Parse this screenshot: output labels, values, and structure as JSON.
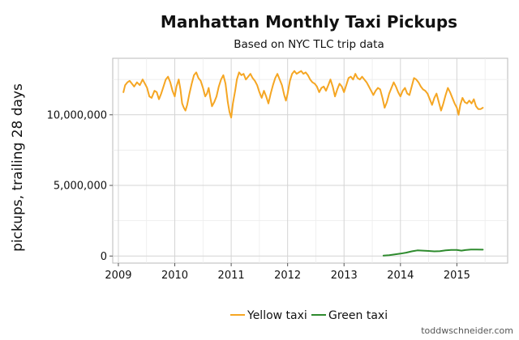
{
  "chart_data": {
    "type": "line",
    "title": "Manhattan Monthly Taxi Pickups",
    "subtitle": "Based on NYC TLC trip data",
    "xlabel": "",
    "ylabel": "pickups, trailing 28 days",
    "x_ticks": [
      "2009",
      "2010",
      "2011",
      "2012",
      "2013",
      "2014",
      "2015"
    ],
    "y_ticks": [
      "0",
      "5,000,000",
      "10,000,000"
    ],
    "ylim": [
      -500000,
      14000000
    ],
    "xlim": [
      2008.9,
      2015.9
    ],
    "grid": true,
    "legend_position": "bottom",
    "credit": "toddwschneider.com",
    "series": [
      {
        "name": "Yellow taxi",
        "color": "#f5a623",
        "points": [
          [
            2009.09,
            11600000
          ],
          [
            2009.12,
            12100000
          ],
          [
            2009.16,
            12300000
          ],
          [
            2009.2,
            12400000
          ],
          [
            2009.24,
            12200000
          ],
          [
            2009.28,
            12000000
          ],
          [
            2009.33,
            12300000
          ],
          [
            2009.38,
            12100000
          ],
          [
            2009.43,
            12500000
          ],
          [
            2009.47,
            12200000
          ],
          [
            2009.51,
            11900000
          ],
          [
            2009.55,
            11300000
          ],
          [
            2009.59,
            11200000
          ],
          [
            2009.64,
            11700000
          ],
          [
            2009.68,
            11600000
          ],
          [
            2009.72,
            11100000
          ],
          [
            2009.76,
            11500000
          ],
          [
            2009.8,
            12000000
          ],
          [
            2009.84,
            12500000
          ],
          [
            2009.88,
            12700000
          ],
          [
            2009.92,
            12300000
          ],
          [
            2009.96,
            11700000
          ],
          [
            2010.0,
            11300000
          ],
          [
            2010.03,
            12000000
          ],
          [
            2010.07,
            12500000
          ],
          [
            2010.1,
            11800000
          ],
          [
            2010.13,
            10800000
          ],
          [
            2010.16,
            10500000
          ],
          [
            2010.19,
            10300000
          ],
          [
            2010.22,
            10700000
          ],
          [
            2010.26,
            11500000
          ],
          [
            2010.3,
            12200000
          ],
          [
            2010.34,
            12800000
          ],
          [
            2010.38,
            13000000
          ],
          [
            2010.42,
            12600000
          ],
          [
            2010.46,
            12400000
          ],
          [
            2010.5,
            11900000
          ],
          [
            2010.54,
            11300000
          ],
          [
            2010.57,
            11500000
          ],
          [
            2010.6,
            11900000
          ],
          [
            2010.63,
            11200000
          ],
          [
            2010.66,
            10600000
          ],
          [
            2010.7,
            10900000
          ],
          [
            2010.74,
            11300000
          ],
          [
            2010.78,
            12000000
          ],
          [
            2010.82,
            12500000
          ],
          [
            2010.86,
            12800000
          ],
          [
            2010.9,
            12200000
          ],
          [
            2010.94,
            10900000
          ],
          [
            2010.97,
            10200000
          ],
          [
            2011.0,
            9800000
          ],
          [
            2011.03,
            10800000
          ],
          [
            2011.07,
            11700000
          ],
          [
            2011.1,
            12500000
          ],
          [
            2011.14,
            13000000
          ],
          [
            2011.18,
            12800000
          ],
          [
            2011.22,
            12900000
          ],
          [
            2011.26,
            12500000
          ],
          [
            2011.3,
            12700000
          ],
          [
            2011.34,
            12900000
          ],
          [
            2011.38,
            12600000
          ],
          [
            2011.42,
            12400000
          ],
          [
            2011.46,
            12100000
          ],
          [
            2011.5,
            11600000
          ],
          [
            2011.54,
            11200000
          ],
          [
            2011.58,
            11700000
          ],
          [
            2011.62,
            11300000
          ],
          [
            2011.66,
            10800000
          ],
          [
            2011.7,
            11500000
          ],
          [
            2011.74,
            12100000
          ],
          [
            2011.78,
            12600000
          ],
          [
            2011.82,
            12900000
          ],
          [
            2011.86,
            12500000
          ],
          [
            2011.9,
            12100000
          ],
          [
            2011.94,
            11400000
          ],
          [
            2011.97,
            11000000
          ],
          [
            2012.0,
            11500000
          ],
          [
            2012.04,
            12400000
          ],
          [
            2012.08,
            12900000
          ],
          [
            2012.12,
            13100000
          ],
          [
            2012.16,
            12900000
          ],
          [
            2012.2,
            13000000
          ],
          [
            2012.24,
            13100000
          ],
          [
            2012.28,
            12900000
          ],
          [
            2012.32,
            13000000
          ],
          [
            2012.36,
            12800000
          ],
          [
            2012.4,
            12500000
          ],
          [
            2012.44,
            12300000
          ],
          [
            2012.48,
            12200000
          ],
          [
            2012.52,
            12000000
          ],
          [
            2012.56,
            11600000
          ],
          [
            2012.6,
            11900000
          ],
          [
            2012.64,
            12000000
          ],
          [
            2012.68,
            11700000
          ],
          [
            2012.72,
            12100000
          ],
          [
            2012.76,
            12500000
          ],
          [
            2012.8,
            12000000
          ],
          [
            2012.84,
            11300000
          ],
          [
            2012.88,
            11800000
          ],
          [
            2012.92,
            12200000
          ],
          [
            2012.96,
            12000000
          ],
          [
            2013.0,
            11600000
          ],
          [
            2013.04,
            12100000
          ],
          [
            2013.08,
            12600000
          ],
          [
            2013.12,
            12700000
          ],
          [
            2013.16,
            12500000
          ],
          [
            2013.2,
            12900000
          ],
          [
            2013.24,
            12600000
          ],
          [
            2013.28,
            12500000
          ],
          [
            2013.32,
            12700000
          ],
          [
            2013.36,
            12500000
          ],
          [
            2013.4,
            12300000
          ],
          [
            2013.44,
            12000000
          ],
          [
            2013.48,
            11700000
          ],
          [
            2013.52,
            11400000
          ],
          [
            2013.56,
            11700000
          ],
          [
            2013.6,
            11900000
          ],
          [
            2013.64,
            11800000
          ],
          [
            2013.68,
            11200000
          ],
          [
            2013.72,
            10500000
          ],
          [
            2013.76,
            10900000
          ],
          [
            2013.8,
            11500000
          ],
          [
            2013.84,
            11900000
          ],
          [
            2013.88,
            12300000
          ],
          [
            2013.92,
            12000000
          ],
          [
            2013.96,
            11600000
          ],
          [
            2014.0,
            11300000
          ],
          [
            2014.04,
            11700000
          ],
          [
            2014.08,
            11900000
          ],
          [
            2014.12,
            11500000
          ],
          [
            2014.16,
            11400000
          ],
          [
            2014.2,
            12000000
          ],
          [
            2014.24,
            12600000
          ],
          [
            2014.28,
            12500000
          ],
          [
            2014.32,
            12300000
          ],
          [
            2014.36,
            12000000
          ],
          [
            2014.4,
            11800000
          ],
          [
            2014.44,
            11700000
          ],
          [
            2014.48,
            11500000
          ],
          [
            2014.52,
            11100000
          ],
          [
            2014.56,
            10700000
          ],
          [
            2014.6,
            11200000
          ],
          [
            2014.64,
            11500000
          ],
          [
            2014.68,
            10900000
          ],
          [
            2014.72,
            10300000
          ],
          [
            2014.76,
            10800000
          ],
          [
            2014.8,
            11400000
          ],
          [
            2014.84,
            11900000
          ],
          [
            2014.88,
            11600000
          ],
          [
            2014.92,
            11200000
          ],
          [
            2014.96,
            10800000
          ],
          [
            2015.0,
            10500000
          ],
          [
            2015.03,
            10000000
          ],
          [
            2015.06,
            10700000
          ],
          [
            2015.1,
            11200000
          ],
          [
            2015.14,
            10900000
          ],
          [
            2015.18,
            10800000
          ],
          [
            2015.22,
            11000000
          ],
          [
            2015.26,
            10800000
          ],
          [
            2015.3,
            11100000
          ],
          [
            2015.34,
            10600000
          ],
          [
            2015.38,
            10400000
          ],
          [
            2015.42,
            10400000
          ],
          [
            2015.46,
            10500000
          ]
        ]
      },
      {
        "name": "Green taxi",
        "color": "#2e8b2e",
        "points": [
          [
            2013.7,
            30000
          ],
          [
            2013.8,
            60000
          ],
          [
            2013.9,
            120000
          ],
          [
            2014.0,
            170000
          ],
          [
            2014.1,
            240000
          ],
          [
            2014.2,
            330000
          ],
          [
            2014.3,
            400000
          ],
          [
            2014.4,
            380000
          ],
          [
            2014.5,
            360000
          ],
          [
            2014.6,
            330000
          ],
          [
            2014.7,
            350000
          ],
          [
            2014.8,
            400000
          ],
          [
            2014.9,
            430000
          ],
          [
            2015.0,
            430000
          ],
          [
            2015.08,
            380000
          ],
          [
            2015.15,
            420000
          ],
          [
            2015.25,
            460000
          ],
          [
            2015.35,
            460000
          ],
          [
            2015.46,
            450000
          ]
        ]
      }
    ]
  }
}
